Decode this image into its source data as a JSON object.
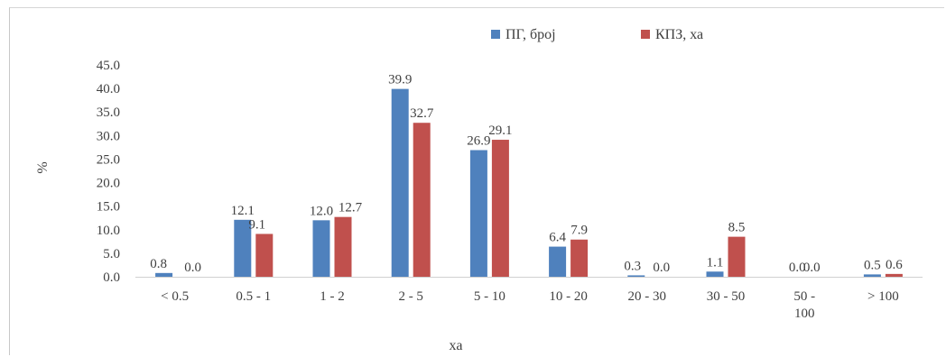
{
  "chart_data": {
    "type": "bar",
    "xlabel": "ха",
    "ylabel": "%",
    "ylim": [
      0,
      45
    ],
    "yticks": [
      "0.0",
      "5.0",
      "10.0",
      "15.0",
      "20.0",
      "25.0",
      "30.0",
      "35.0",
      "40.0",
      "45.0"
    ],
    "categories": [
      [
        "< 0.5"
      ],
      [
        "0.5 - 1"
      ],
      [
        "1 - 2"
      ],
      [
        "2 - 5"
      ],
      [
        "5 - 10"
      ],
      [
        "10 - 20"
      ],
      [
        "20 - 30"
      ],
      [
        "30 - 50"
      ],
      [
        "50 -",
        "100"
      ],
      [
        "> 100"
      ]
    ],
    "series": [
      {
        "name": "ПГ, број",
        "color": "#4f81bd",
        "values": [
          0.8,
          12.1,
          12.0,
          39.9,
          26.9,
          6.4,
          0.3,
          1.1,
          0.0,
          0.5
        ],
        "labels": [
          "0.8",
          "12.1",
          "12.0",
          "39.9",
          "26.9",
          "6.4",
          "0.3",
          "1.1",
          "0.0",
          "0.5"
        ]
      },
      {
        "name": "КПЗ, ха",
        "color": "#c0504d",
        "values": [
          0.0,
          9.1,
          12.7,
          32.7,
          29.1,
          7.9,
          0.0,
          8.5,
          0.0,
          0.6
        ],
        "labels": [
          "0.0",
          "9.1",
          "12.7",
          "32.7",
          "29.1",
          "7.9",
          "0.0",
          "8.5",
          "0.0",
          "0.6"
        ]
      }
    ],
    "legend": "top-right",
    "grid": false
  }
}
